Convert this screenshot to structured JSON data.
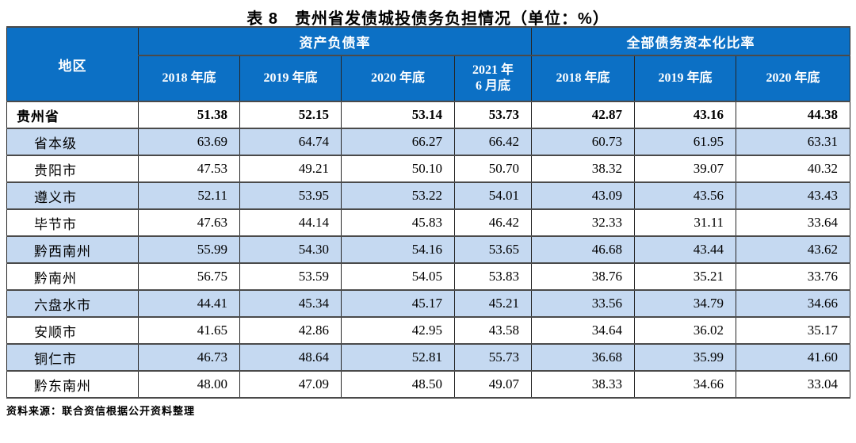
{
  "title": "表 8　贵州省发债城投债务负担情况（单位：%）",
  "table": {
    "region_header": "地区",
    "group1": {
      "label": "资产负债率",
      "years": [
        "2018 年底",
        "2019 年底",
        "2020 年底",
        "2021 年\n6 月底"
      ]
    },
    "group2": {
      "label": "全部债务资本化比率",
      "years": [
        "2018 年底",
        "2019 年底",
        "2020 年底"
      ]
    },
    "rows": [
      {
        "region": "贵州省",
        "indent": false,
        "bold": true,
        "alt": false,
        "values": [
          "51.38",
          "52.15",
          "53.14",
          "53.73",
          "42.87",
          "43.16",
          "44.38"
        ]
      },
      {
        "region": "省本级",
        "indent": true,
        "bold": false,
        "alt": true,
        "values": [
          "63.69",
          "64.74",
          "66.27",
          "66.42",
          "60.73",
          "61.95",
          "63.31"
        ]
      },
      {
        "region": "贵阳市",
        "indent": true,
        "bold": false,
        "alt": false,
        "values": [
          "47.53",
          "49.21",
          "50.10",
          "50.70",
          "38.32",
          "39.07",
          "40.32"
        ]
      },
      {
        "region": "遵义市",
        "indent": true,
        "bold": false,
        "alt": true,
        "values": [
          "52.11",
          "53.95",
          "53.22",
          "54.01",
          "43.09",
          "43.56",
          "43.43"
        ]
      },
      {
        "region": "毕节市",
        "indent": true,
        "bold": false,
        "alt": false,
        "values": [
          "47.63",
          "44.14",
          "45.83",
          "46.42",
          "32.33",
          "31.11",
          "33.64"
        ]
      },
      {
        "region": "黔西南州",
        "indent": true,
        "bold": false,
        "alt": true,
        "values": [
          "55.99",
          "54.30",
          "54.16",
          "53.65",
          "46.68",
          "43.44",
          "43.62"
        ]
      },
      {
        "region": "黔南州",
        "indent": true,
        "bold": false,
        "alt": false,
        "values": [
          "56.75",
          "53.59",
          "54.05",
          "53.83",
          "38.76",
          "35.21",
          "33.76"
        ]
      },
      {
        "region": "六盘水市",
        "indent": true,
        "bold": false,
        "alt": true,
        "values": [
          "44.41",
          "45.34",
          "45.17",
          "45.21",
          "33.56",
          "34.79",
          "34.66"
        ]
      },
      {
        "region": "安顺市",
        "indent": true,
        "bold": false,
        "alt": false,
        "values": [
          "41.65",
          "42.86",
          "42.95",
          "43.58",
          "34.64",
          "36.02",
          "35.17"
        ]
      },
      {
        "region": "铜仁市",
        "indent": true,
        "bold": false,
        "alt": true,
        "values": [
          "46.73",
          "48.64",
          "52.81",
          "55.73",
          "36.68",
          "35.99",
          "41.60"
        ]
      },
      {
        "region": "黔东南州",
        "indent": true,
        "bold": false,
        "alt": false,
        "values": [
          "48.00",
          "47.09",
          "48.50",
          "49.07",
          "38.33",
          "34.66",
          "33.04"
        ]
      }
    ]
  },
  "footer": {
    "source": "资料来源：联合资信根据公开资料整理"
  },
  "colors": {
    "header_bg": "#0c70c5",
    "header_text": "#ffffff",
    "alt_row_bg": "#c5d9f1",
    "border": "#262626"
  }
}
